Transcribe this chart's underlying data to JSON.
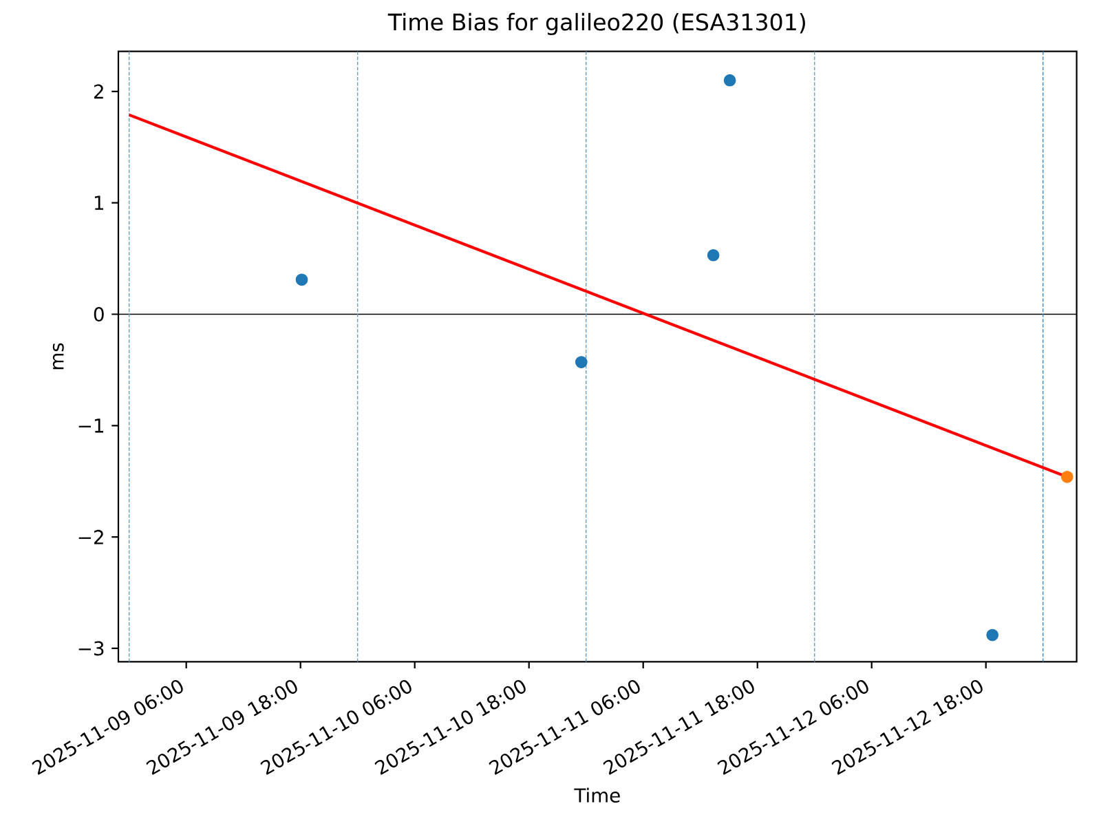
{
  "chart_data": {
    "type": "scatter",
    "title": "Time Bias for galileo220 (ESA31301)",
    "xlabel": "Time",
    "ylabel": "ms",
    "xlim": [
      "2025-11-08T22:52",
      "2025-11-13T03:32"
    ],
    "ylim": [
      -3.12,
      2.36
    ],
    "xticks": [
      {
        "value": "2025-11-09T06:00",
        "label": "2025-11-09 06:00"
      },
      {
        "value": "2025-11-09T18:00",
        "label": "2025-11-09 18:00"
      },
      {
        "value": "2025-11-10T06:00",
        "label": "2025-11-10 06:00"
      },
      {
        "value": "2025-11-10T18:00",
        "label": "2025-11-10 18:00"
      },
      {
        "value": "2025-11-11T06:00",
        "label": "2025-11-11 06:00"
      },
      {
        "value": "2025-11-11T18:00",
        "label": "2025-11-11 18:00"
      },
      {
        "value": "2025-11-12T06:00",
        "label": "2025-11-12 06:00"
      },
      {
        "value": "2025-11-12T18:00",
        "label": "2025-11-12 18:00"
      }
    ],
    "yticks": [
      {
        "value": -3,
        "label": "−3"
      },
      {
        "value": -2,
        "label": "−2"
      },
      {
        "value": -1,
        "label": "−1"
      },
      0,
      1,
      2
    ],
    "ref_lines": [
      {
        "axis": "y",
        "value": 0,
        "color": "#000000",
        "line_style": "solid"
      },
      {
        "axis": "x",
        "value": "2025-11-09T00:00",
        "color": "#62a0ca",
        "line_style": "dashed"
      },
      {
        "axis": "x",
        "value": "2025-11-10T00:00",
        "color": "#62a0ca",
        "line_style": "dashed"
      },
      {
        "axis": "x",
        "value": "2025-11-11T00:00",
        "color": "#62a0ca",
        "line_style": "dashed"
      },
      {
        "axis": "x",
        "value": "2025-11-12T00:00",
        "color": "#62a0ca",
        "line_style": "dashed"
      },
      {
        "axis": "x",
        "value": "2025-11-13T00:00",
        "color": "#3a87bf",
        "line_style": "dashed"
      }
    ],
    "series": [
      {
        "color": "#1f77b4",
        "marker": "circle",
        "x": [
          "2025-11-09T18:08",
          "2025-11-10T23:30",
          "2025-11-11T13:22",
          "2025-11-11T15:06",
          "2025-11-12T18:41"
        ],
        "values": [
          0.31,
          -0.43,
          0.53,
          2.1,
          -2.88
        ]
      },
      {
        "type": "line",
        "color": "#ff0000",
        "line_style": "solid",
        "x": [
          "2025-11-09T00:00",
          "2025-11-13T02:32"
        ],
        "values": [
          1.79,
          -1.46
        ]
      },
      {
        "color": "#ff7f0e",
        "marker": "circle",
        "x": [
          "2025-11-13T02:32"
        ],
        "values": [
          -1.46
        ]
      }
    ]
  }
}
